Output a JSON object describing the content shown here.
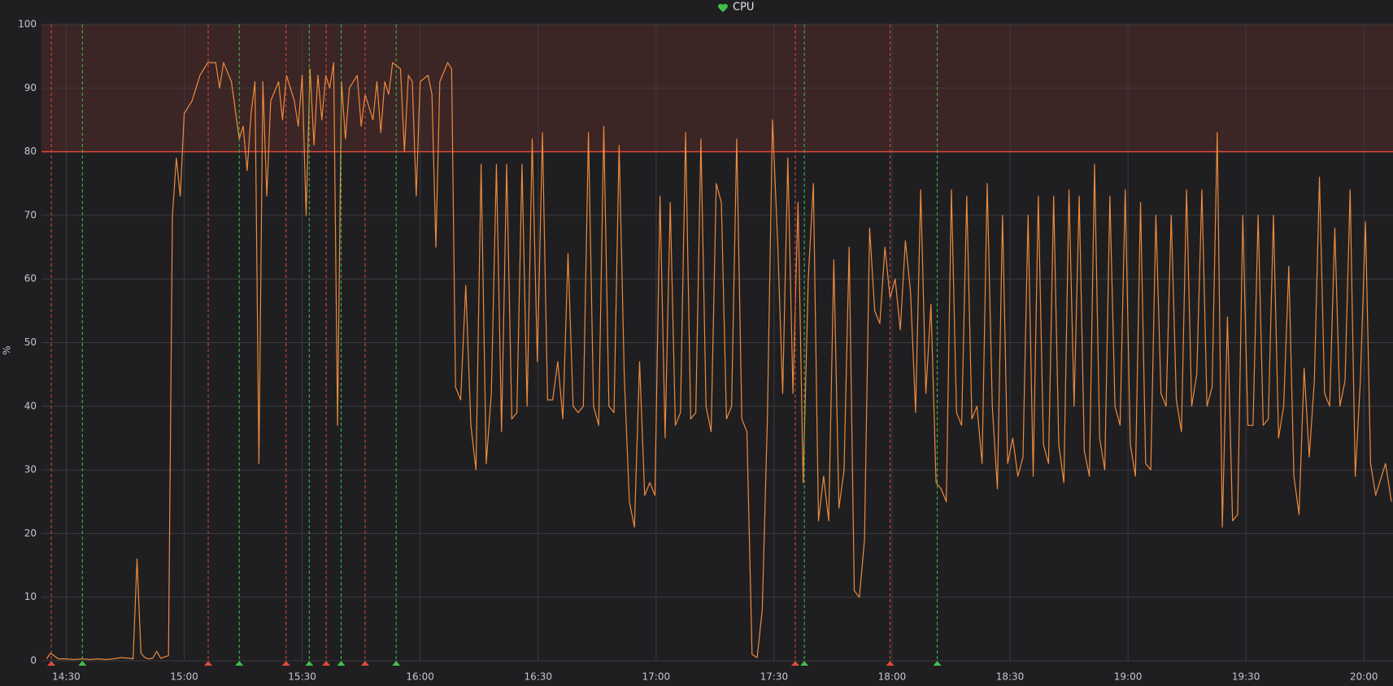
{
  "chart_data": {
    "type": "line",
    "title": "CPU",
    "y_label": "%",
    "xlim": [
      863.7,
      1207.4
    ],
    "xticks": [
      {
        "value": 870,
        "label": "14:30"
      },
      {
        "value": 900,
        "label": "15:00"
      },
      {
        "value": 930,
        "label": "15:30"
      },
      {
        "value": 960,
        "label": "16:00"
      },
      {
        "value": 990,
        "label": "16:30"
      },
      {
        "value": 1020,
        "label": "17:00"
      },
      {
        "value": 1050,
        "label": "17:30"
      },
      {
        "value": 1080,
        "label": "18:00"
      },
      {
        "value": 1110,
        "label": "18:30"
      },
      {
        "value": 1140,
        "label": "19:00"
      },
      {
        "value": 1170,
        "label": "19:30"
      },
      {
        "value": 1200,
        "label": "20:00"
      }
    ],
    "ylim": [
      0,
      100
    ],
    "yticks": [
      0,
      10,
      20,
      30,
      40,
      50,
      60,
      70,
      80,
      90,
      100
    ],
    "grid": true,
    "threshold": {
      "value": 80,
      "color": "#e0483d"
    },
    "annotations": [
      {
        "time": 866.2,
        "color": "#e0483d"
      },
      {
        "time": 906.1,
        "color": "#e0483d"
      },
      {
        "time": 925.9,
        "color": "#e0483d"
      },
      {
        "time": 936.1,
        "color": "#e0483d"
      },
      {
        "time": 946.0,
        "color": "#e0483d"
      },
      {
        "time": 1055.4,
        "color": "#e0483d"
      },
      {
        "time": 1079.5,
        "color": "#e0483d"
      },
      {
        "time": 874.1,
        "color": "#3fbf4a"
      },
      {
        "time": 914.0,
        "color": "#3fbf4a"
      },
      {
        "time": 931.8,
        "color": "#3fbf4a"
      },
      {
        "time": 939.9,
        "color": "#3fbf4a"
      },
      {
        "time": 953.9,
        "color": "#3fbf4a"
      },
      {
        "time": 1057.7,
        "color": "#3fbf4a"
      },
      {
        "time": 1091.5,
        "color": "#3fbf4a"
      }
    ],
    "x": [
      865,
      866,
      868,
      870,
      872,
      874,
      876,
      878,
      880,
      882,
      884,
      886,
      887,
      888,
      889,
      890,
      891,
      892,
      893,
      894,
      895,
      896,
      897,
      898,
      899,
      900,
      902,
      904,
      906,
      908,
      909,
      910,
      912,
      914,
      915,
      916,
      917,
      918,
      919,
      920,
      921,
      922,
      924,
      925,
      926,
      928,
      929,
      930,
      931,
      932,
      933,
      934,
      935,
      936,
      937,
      938,
      939,
      940,
      941,
      942,
      944,
      945,
      946,
      948,
      949,
      950,
      951,
      952,
      953,
      955,
      956,
      957,
      958,
      959,
      960,
      962,
      963,
      964,
      965,
      967,
      968,
      969,
      970.3,
      971.6,
      972.9,
      974.2,
      975.5,
      976.8,
      978.1,
      979.4,
      980.7,
      982,
      983.3,
      984.6,
      985.9,
      987.2,
      988.5,
      989.8,
      991.1,
      992.4,
      993.7,
      995,
      996.3,
      997.6,
      998.9,
      1000.2,
      1001.5,
      1002.8,
      1004.1,
      1005.4,
      1006.7,
      1008,
      1009.3,
      1010.6,
      1011.9,
      1013.2,
      1014.5,
      1015.8,
      1017.1,
      1018.4,
      1019.7,
      1021,
      1022.3,
      1023.6,
      1024.9,
      1026.2,
      1027.5,
      1028.8,
      1030.1,
      1031.4,
      1032.7,
      1034,
      1035.3,
      1036.6,
      1037.9,
      1039.2,
      1040.5,
      1041.8,
      1043.1,
      1044.4,
      1045.7,
      1047,
      1048.3,
      1049.6,
      1050.9,
      1052.2,
      1053.5,
      1054.8,
      1056.1,
      1057.4,
      1058.7,
      1060,
      1061.3,
      1062.6,
      1063.9,
      1065.2,
      1066.5,
      1067.8,
      1069.1,
      1070.4,
      1071.7,
      1073,
      1074.3,
      1075.6,
      1076.9,
      1078.2,
      1079.5,
      1080.8,
      1082.1,
      1083.4,
      1084.7,
      1086,
      1087.3,
      1088.6,
      1089.9,
      1091.2,
      1092.5,
      1093.8,
      1095.1,
      1096.4,
      1097.7,
      1099,
      1100.3,
      1101.6,
      1102.9,
      1104.2,
      1105.5,
      1106.8,
      1108.1,
      1109.4,
      1110.7,
      1112,
      1113.3,
      1114.6,
      1115.9,
      1117.2,
      1118.5,
      1119.8,
      1121.1,
      1122.4,
      1123.7,
      1125,
      1126.3,
      1127.6,
      1128.9,
      1130.2,
      1131.5,
      1132.8,
      1134.1,
      1135.4,
      1136.7,
      1138,
      1139.3,
      1140.6,
      1141.9,
      1143.2,
      1144.5,
      1145.8,
      1147.1,
      1148.4,
      1149.7,
      1151,
      1152.3,
      1153.6,
      1154.9,
      1156.2,
      1157.5,
      1158.8,
      1160.1,
      1161.4,
      1162.7,
      1164,
      1165.3,
      1166.6,
      1167.9,
      1169.2,
      1170.5,
      1171.8,
      1173.1,
      1174.4,
      1175.7,
      1177,
      1178.3,
      1179.6,
      1180.9,
      1182.2,
      1183.5,
      1184.8,
      1186.1,
      1187.4,
      1188.7,
      1190,
      1191.3,
      1192.6,
      1193.9,
      1195.2,
      1196.5,
      1197.8,
      1199.1,
      1200.4,
      1201.7,
      1203,
      1205.5,
      1207
    ],
    "series": [
      {
        "name": "CPU",
        "color": "#ee8a3c",
        "values": [
          0.3,
          1.2,
          0.3,
          0.3,
          0.2,
          0.3,
          0.2,
          0.3,
          0.2,
          0.3,
          0.5,
          0.4,
          0.3,
          16,
          1.2,
          0.5,
          0.3,
          0.4,
          1.5,
          0.4,
          0.6,
          0.8,
          70,
          79,
          73,
          86,
          88,
          92,
          94,
          94,
          90,
          94,
          91,
          82,
          84,
          77,
          86,
          91,
          31,
          91,
          73,
          88,
          91,
          85,
          92,
          88,
          84,
          92,
          70,
          93,
          81,
          92,
          85,
          92,
          90,
          94,
          37,
          91,
          82,
          90,
          92,
          84,
          89,
          85,
          91,
          83,
          91,
          89,
          94,
          93,
          80,
          92,
          91,
          73,
          91,
          92,
          89,
          65,
          91,
          94,
          93,
          43,
          41,
          59,
          37,
          30,
          78,
          31,
          42,
          78,
          36,
          78,
          38,
          39,
          78,
          40,
          82,
          47,
          83,
          41,
          41,
          47,
          38,
          64,
          40,
          39,
          40,
          83,
          40,
          37,
          84,
          40,
          39,
          81,
          45,
          25,
          21,
          47,
          26,
          28,
          26,
          73,
          35,
          72,
          37,
          39,
          83,
          38,
          39,
          82,
          40,
          36,
          75,
          72,
          38,
          40,
          82,
          38,
          36,
          1,
          0.5,
          8,
          38,
          85,
          66,
          42,
          79,
          42,
          72,
          28,
          60,
          75,
          22,
          29,
          22,
          63,
          24,
          30,
          65,
          11,
          10,
          19,
          68,
          55,
          53,
          65,
          57,
          60,
          52,
          66,
          58,
          39,
          74,
          42,
          56,
          28,
          27,
          25,
          74,
          39,
          37,
          73,
          38,
          40,
          31,
          75,
          40,
          27,
          70,
          31,
          35,
          29,
          32,
          70,
          29,
          73,
          34,
          31,
          73,
          34,
          28,
          74,
          40,
          73,
          33,
          29,
          78,
          35,
          30,
          73,
          40,
          37,
          74,
          34,
          29,
          72,
          31,
          30,
          70,
          42,
          40,
          70,
          41,
          36,
          74,
          40,
          45,
          74,
          40,
          43,
          83,
          21,
          54,
          22,
          23,
          70,
          37,
          37,
          70,
          37,
          38,
          70,
          35,
          40,
          62,
          29,
          23,
          46,
          32,
          44,
          76,
          42,
          40,
          68,
          40,
          44,
          74,
          29,
          44,
          69,
          31,
          26,
          31,
          25
        ]
      }
    ]
  }
}
